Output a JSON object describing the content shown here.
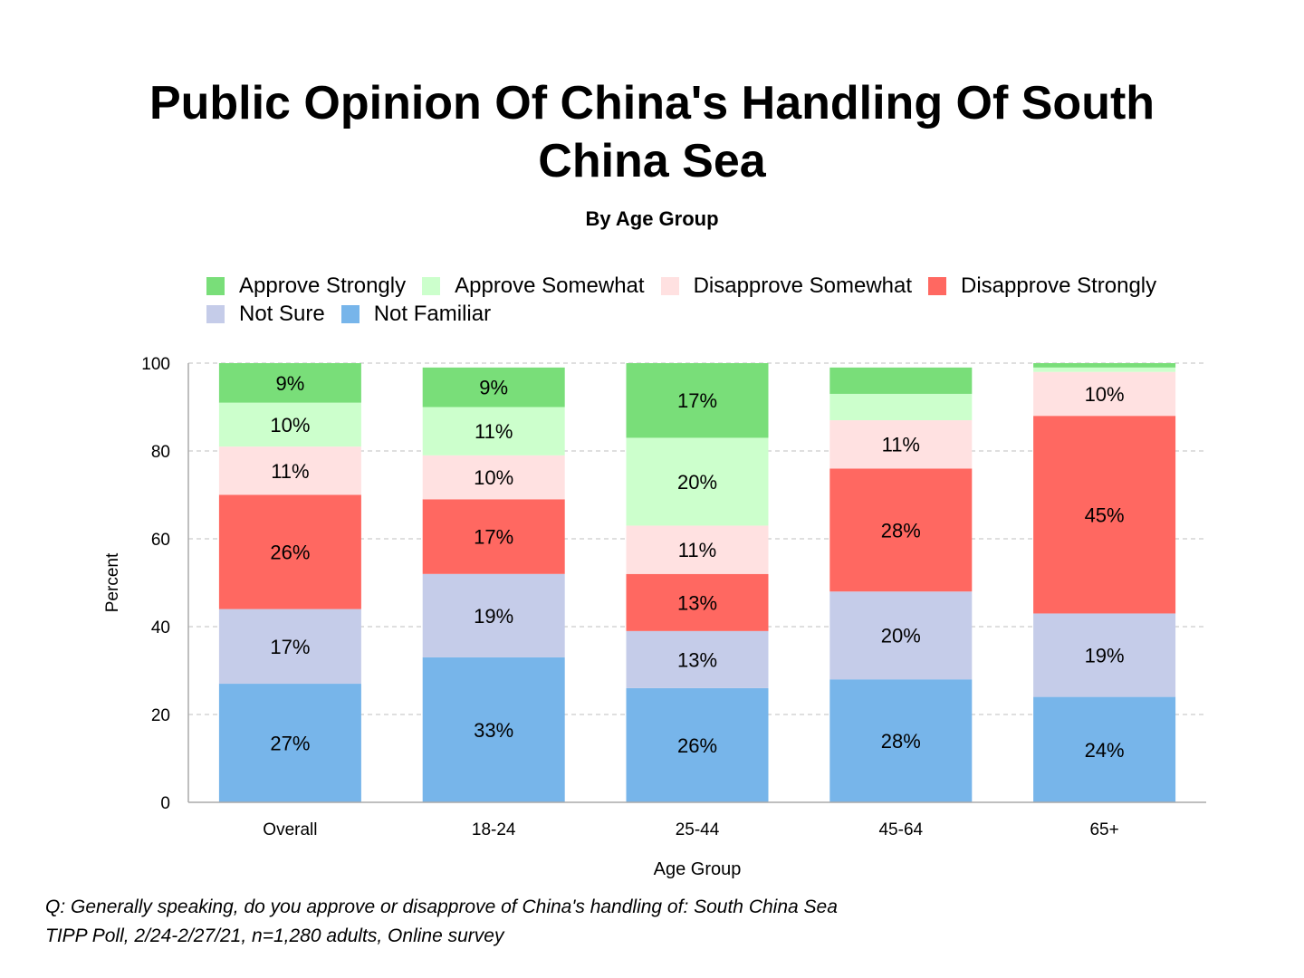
{
  "chart_data": {
    "type": "bar",
    "stacked": true,
    "title": "Public Opinion Of China's Handling Of South China Sea",
    "subtitle": "By Age Group",
    "xlabel": "Age Group",
    "ylabel": "Percent",
    "ylim": [
      0,
      100
    ],
    "yticks": [
      0,
      20,
      40,
      60,
      80,
      100
    ],
    "grid": true,
    "legend_position": "top",
    "categories": [
      "Overall",
      "18-24",
      "25-44",
      "45-64",
      "65+"
    ],
    "series": [
      {
        "name": "Not Familiar",
        "color": "#77B5EA",
        "values": [
          27,
          33,
          26,
          28,
          24
        ]
      },
      {
        "name": "Not Sure",
        "color": "#C5CCE9",
        "values": [
          17,
          19,
          13,
          20,
          19
        ]
      },
      {
        "name": "Disapprove Strongly",
        "color": "#FF6861",
        "values": [
          26,
          17,
          13,
          28,
          45
        ]
      },
      {
        "name": "Disapprove Somewhat",
        "color": "#FFE1E1",
        "values": [
          11,
          10,
          11,
          11,
          10
        ]
      },
      {
        "name": "Approve Somewhat",
        "color": "#CCFFCC",
        "values": [
          10,
          11,
          20,
          6,
          1
        ]
      },
      {
        "name": "Approve Strongly",
        "color": "#79DE79",
        "values": [
          9,
          9,
          17,
          6,
          1
        ]
      }
    ],
    "legend_order": [
      "Approve Strongly",
      "Approve Somewhat",
      "Disapprove Somewhat",
      "Disapprove Strongly",
      "Not Sure",
      "Not Familiar"
    ]
  },
  "footer": {
    "question": "Q:  Generally speaking, do you approve or disapprove of China's handling of: South China Sea",
    "source": "TIPP Poll, 2/24-2/27/21, n=1,280 adults, Online survey"
  }
}
